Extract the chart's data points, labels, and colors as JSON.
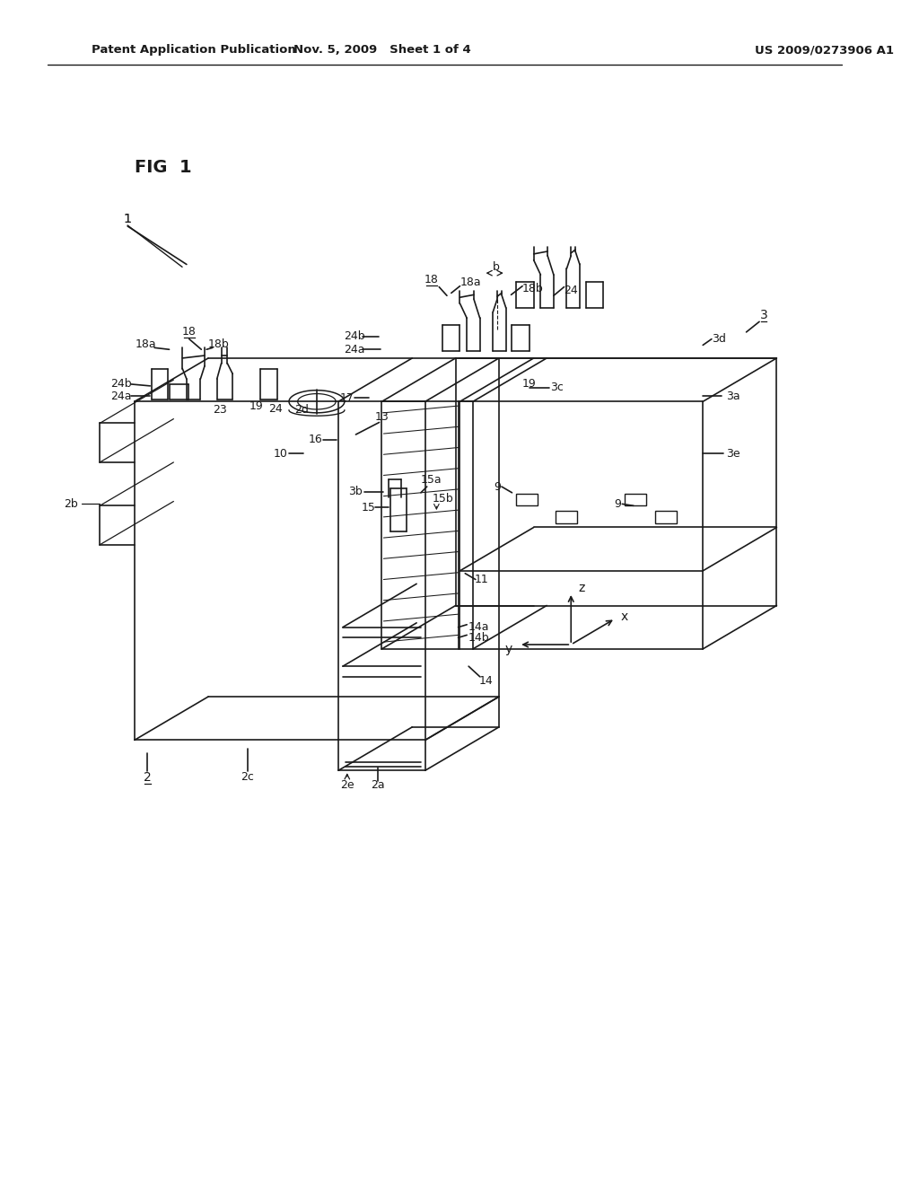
{
  "bg_color": "#ffffff",
  "line_color": "#1a1a1a",
  "header_left": "Patent Application Publication",
  "header_mid": "Nov. 5, 2009   Sheet 1 of 4",
  "header_right": "US 2009/0273906 A1",
  "fig_label": "FIG  1"
}
